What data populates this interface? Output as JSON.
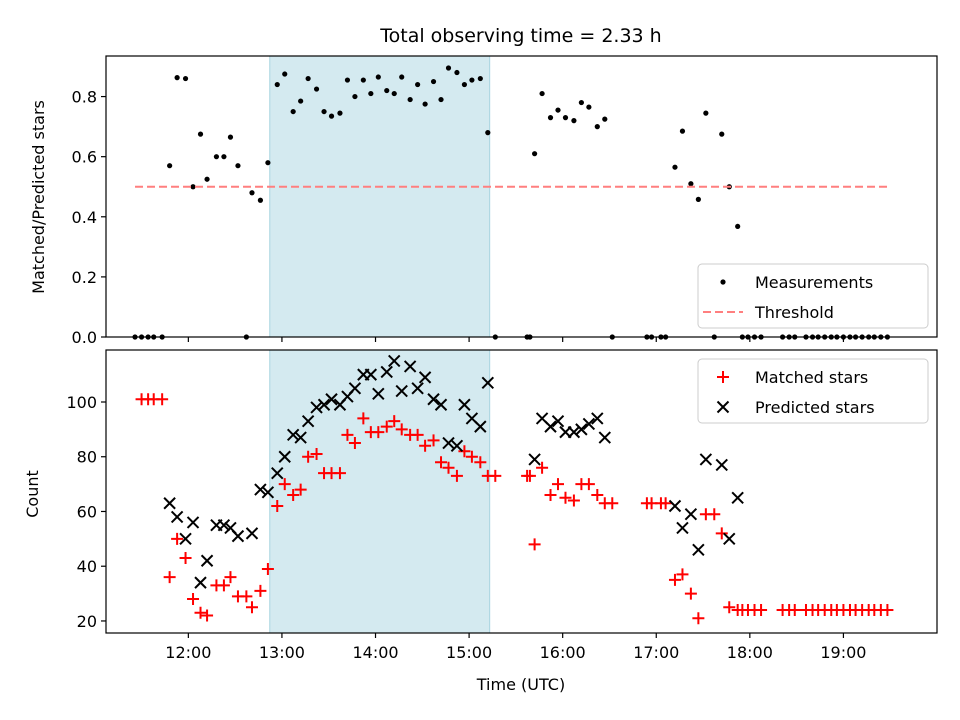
{
  "chart_data": [
    {
      "type": "scatter",
      "title": "Total observing time = 2.33 h",
      "ylabel": "Matched/Predicted stars",
      "xlim": [
        11.12,
        20.0
      ],
      "ylim": [
        0,
        0.935
      ],
      "yticks": [
        0.0,
        0.2,
        0.4,
        0.6,
        0.8
      ],
      "ytick_labels": [
        "0.0",
        "0.2",
        "0.4",
        "0.6",
        "0.8"
      ],
      "xticks": [
        12,
        13,
        14,
        15,
        16,
        17,
        18,
        19
      ],
      "shaded_span": [
        12.87,
        15.22
      ],
      "shade_color": "#d4eaf0",
      "legend_position": "lower right",
      "series": [
        {
          "name": "Measurements",
          "marker": "dot",
          "color": "#000000",
          "points": [
            [
              11.43,
              0
            ],
            [
              11.5,
              0
            ],
            [
              11.57,
              0
            ],
            [
              11.63,
              0
            ],
            [
              11.72,
              0
            ],
            [
              11.8,
              0.57
            ],
            [
              11.88,
              0.863
            ],
            [
              11.97,
              0.86
            ],
            [
              12.05,
              0.5
            ],
            [
              12.13,
              0.675
            ],
            [
              12.2,
              0.525
            ],
            [
              12.3,
              0.6
            ],
            [
              12.38,
              0.6
            ],
            [
              12.45,
              0.665
            ],
            [
              12.53,
              0.57
            ],
            [
              12.62,
              0
            ],
            [
              12.68,
              0.48
            ],
            [
              12.77,
              0.455
            ],
            [
              12.85,
              0.58
            ],
            [
              12.95,
              0.84
            ],
            [
              13.03,
              0.875
            ],
            [
              13.12,
              0.75
            ],
            [
              13.2,
              0.785
            ],
            [
              13.28,
              0.86
            ],
            [
              13.37,
              0.825
            ],
            [
              13.45,
              0.75
            ],
            [
              13.53,
              0.735
            ],
            [
              13.62,
              0.745
            ],
            [
              13.7,
              0.855
            ],
            [
              13.78,
              0.8
            ],
            [
              13.87,
              0.855
            ],
            [
              13.95,
              0.81
            ],
            [
              14.03,
              0.865
            ],
            [
              14.12,
              0.82
            ],
            [
              14.2,
              0.81
            ],
            [
              14.28,
              0.865
            ],
            [
              14.37,
              0.79
            ],
            [
              14.45,
              0.84
            ],
            [
              14.53,
              0.775
            ],
            [
              14.62,
              0.85
            ],
            [
              14.7,
              0.79
            ],
            [
              14.78,
              0.895
            ],
            [
              14.87,
              0.88
            ],
            [
              14.95,
              0.84
            ],
            [
              15.03,
              0.855
            ],
            [
              15.12,
              0.86
            ],
            [
              15.2,
              0.68
            ],
            [
              15.28,
              0
            ],
            [
              15.62,
              0
            ],
            [
              15.65,
              0
            ],
            [
              15.7,
              0.61
            ],
            [
              15.78,
              0.81
            ],
            [
              15.87,
              0.73
            ],
            [
              15.95,
              0.755
            ],
            [
              16.03,
              0.73
            ],
            [
              16.12,
              0.72
            ],
            [
              16.2,
              0.78
            ],
            [
              16.28,
              0.765
            ],
            [
              16.37,
              0.7
            ],
            [
              16.45,
              0.725
            ],
            [
              16.53,
              0
            ],
            [
              16.9,
              0
            ],
            [
              16.95,
              0
            ],
            [
              17.05,
              0
            ],
            [
              17.1,
              0
            ],
            [
              17.2,
              0.565
            ],
            [
              17.28,
              0.685
            ],
            [
              17.37,
              0.51
            ],
            [
              17.45,
              0.458
            ],
            [
              17.53,
              0.745
            ],
            [
              17.62,
              0
            ],
            [
              17.7,
              0.675
            ],
            [
              17.78,
              0.5
            ],
            [
              17.87,
              0.368
            ],
            [
              17.92,
              0
            ],
            [
              17.98,
              0
            ],
            [
              18.05,
              0
            ],
            [
              18.12,
              0
            ],
            [
              18.35,
              0
            ],
            [
              18.42,
              0
            ],
            [
              18.48,
              0
            ],
            [
              18.6,
              0
            ],
            [
              18.67,
              0
            ],
            [
              18.73,
              0
            ],
            [
              18.8,
              0
            ],
            [
              18.87,
              0
            ],
            [
              18.93,
              0
            ],
            [
              19.0,
              0
            ],
            [
              19.07,
              0
            ],
            [
              19.13,
              0
            ],
            [
              19.2,
              0
            ],
            [
              19.27,
              0
            ],
            [
              19.33,
              0
            ],
            [
              19.4,
              0
            ],
            [
              19.47,
              0
            ]
          ]
        },
        {
          "name": "Threshold",
          "marker": "dashed-line",
          "color": "#ff7f7f",
          "points": [
            [
              11.43,
              0.5
            ],
            [
              19.47,
              0.5
            ]
          ]
        }
      ]
    },
    {
      "type": "scatter",
      "xlabel": "Time (UTC)",
      "ylabel": "Count",
      "xlim": [
        11.12,
        20.0
      ],
      "ylim": [
        15.6,
        119.0
      ],
      "yticks": [
        20,
        40,
        60,
        80,
        100
      ],
      "ytick_labels": [
        "20",
        "40",
        "60",
        "80",
        "100"
      ],
      "xticks": [
        12,
        13,
        14,
        15,
        16,
        17,
        18,
        19
      ],
      "xtick_labels": [
        "12:00",
        "13:00",
        "14:00",
        "15:00",
        "16:00",
        "17:00",
        "18:00",
        "19:00"
      ],
      "shaded_span": [
        12.87,
        15.22
      ],
      "shade_color": "#d4eaf0",
      "legend_position": "upper right",
      "series": [
        {
          "name": "Matched stars",
          "marker": "plus",
          "color": "#ff0000",
          "points": [
            [
              11.5,
              101
            ],
            [
              11.57,
              101
            ],
            [
              11.63,
              101
            ],
            [
              11.72,
              101
            ],
            [
              11.8,
              36
            ],
            [
              11.88,
              50
            ],
            [
              11.97,
              43
            ],
            [
              12.05,
              28
            ],
            [
              12.13,
              23
            ],
            [
              12.2,
              22
            ],
            [
              12.3,
              33
            ],
            [
              12.38,
              33
            ],
            [
              12.45,
              36
            ],
            [
              12.53,
              29
            ],
            [
              12.62,
              29
            ],
            [
              12.68,
              25
            ],
            [
              12.77,
              31
            ],
            [
              12.85,
              39
            ],
            [
              12.95,
              62
            ],
            [
              13.03,
              70
            ],
            [
              13.12,
              66
            ],
            [
              13.2,
              68
            ],
            [
              13.28,
              80
            ],
            [
              13.37,
              81
            ],
            [
              13.45,
              74
            ],
            [
              13.53,
              74
            ],
            [
              13.62,
              74
            ],
            [
              13.7,
              88
            ],
            [
              13.78,
              85
            ],
            [
              13.87,
              94
            ],
            [
              13.95,
              89
            ],
            [
              14.03,
              89
            ],
            [
              14.12,
              91
            ],
            [
              14.2,
              93
            ],
            [
              14.28,
              90
            ],
            [
              14.37,
              88
            ],
            [
              14.45,
              88
            ],
            [
              14.53,
              84
            ],
            [
              14.62,
              86
            ],
            [
              14.7,
              78
            ],
            [
              14.78,
              76
            ],
            [
              14.87,
              73
            ],
            [
              14.95,
              82
            ],
            [
              15.03,
              80
            ],
            [
              15.12,
              78
            ],
            [
              15.2,
              73
            ],
            [
              15.28,
              73
            ],
            [
              15.62,
              73
            ],
            [
              15.65,
              73
            ],
            [
              15.7,
              48
            ],
            [
              15.78,
              76
            ],
            [
              15.87,
              66
            ],
            [
              15.95,
              70
            ],
            [
              16.03,
              65
            ],
            [
              16.12,
              64
            ],
            [
              16.2,
              70
            ],
            [
              16.28,
              70
            ],
            [
              16.37,
              66
            ],
            [
              16.45,
              63
            ],
            [
              16.53,
              63
            ],
            [
              16.9,
              63
            ],
            [
              16.95,
              63
            ],
            [
              17.05,
              63
            ],
            [
              17.1,
              63
            ],
            [
              17.2,
              35
            ],
            [
              17.28,
              37
            ],
            [
              17.37,
              30
            ],
            [
              17.45,
              21
            ],
            [
              17.53,
              59
            ],
            [
              17.62,
              59
            ],
            [
              17.7,
              52
            ],
            [
              17.78,
              25
            ],
            [
              17.87,
              24
            ],
            [
              17.92,
              24
            ],
            [
              17.98,
              24
            ],
            [
              18.05,
              24
            ],
            [
              18.12,
              24
            ],
            [
              18.35,
              24
            ],
            [
              18.42,
              24
            ],
            [
              18.48,
              24
            ],
            [
              18.6,
              24
            ],
            [
              18.67,
              24
            ],
            [
              18.73,
              24
            ],
            [
              18.8,
              24
            ],
            [
              18.87,
              24
            ],
            [
              18.93,
              24
            ],
            [
              19.0,
              24
            ],
            [
              19.07,
              24
            ],
            [
              19.13,
              24
            ],
            [
              19.2,
              24
            ],
            [
              19.27,
              24
            ],
            [
              19.33,
              24
            ],
            [
              19.4,
              24
            ],
            [
              19.47,
              24
            ]
          ]
        },
        {
          "name": "Predicted stars",
          "marker": "x",
          "color": "#000000",
          "points": [
            [
              11.8,
              63
            ],
            [
              11.88,
              58
            ],
            [
              11.97,
              50
            ],
            [
              12.05,
              56
            ],
            [
              12.13,
              34
            ],
            [
              12.2,
              42
            ],
            [
              12.3,
              55
            ],
            [
              12.38,
              55
            ],
            [
              12.45,
              54
            ],
            [
              12.53,
              51
            ],
            [
              12.68,
              52
            ],
            [
              12.77,
              68
            ],
            [
              12.85,
              67
            ],
            [
              12.95,
              74
            ],
            [
              13.03,
              80
            ],
            [
              13.12,
              88
            ],
            [
              13.2,
              87
            ],
            [
              13.28,
              93
            ],
            [
              13.37,
              98
            ],
            [
              13.45,
              99
            ],
            [
              13.53,
              101
            ],
            [
              13.62,
              99
            ],
            [
              13.7,
              102
            ],
            [
              13.78,
              105
            ],
            [
              13.87,
              110
            ],
            [
              13.95,
              110
            ],
            [
              14.03,
              103
            ],
            [
              14.12,
              111
            ],
            [
              14.2,
              115
            ],
            [
              14.28,
              104
            ],
            [
              14.37,
              113
            ],
            [
              14.45,
              105
            ],
            [
              14.53,
              109
            ],
            [
              14.62,
              101
            ],
            [
              14.7,
              99
            ],
            [
              14.78,
              85
            ],
            [
              14.87,
              84
            ],
            [
              14.95,
              99
            ],
            [
              15.03,
              94
            ],
            [
              15.12,
              91
            ],
            [
              15.2,
              107
            ],
            [
              15.7,
              79
            ],
            [
              15.78,
              94
            ],
            [
              15.87,
              91
            ],
            [
              15.95,
              93
            ],
            [
              16.03,
              89
            ],
            [
              16.12,
              89
            ],
            [
              16.2,
              90
            ],
            [
              16.28,
              92
            ],
            [
              16.37,
              94
            ],
            [
              16.45,
              87
            ],
            [
              17.2,
              62
            ],
            [
              17.28,
              54
            ],
            [
              17.37,
              59
            ],
            [
              17.45,
              46
            ],
            [
              17.53,
              79
            ],
            [
              17.7,
              77
            ],
            [
              17.78,
              50
            ],
            [
              17.87,
              65
            ]
          ]
        }
      ]
    }
  ]
}
